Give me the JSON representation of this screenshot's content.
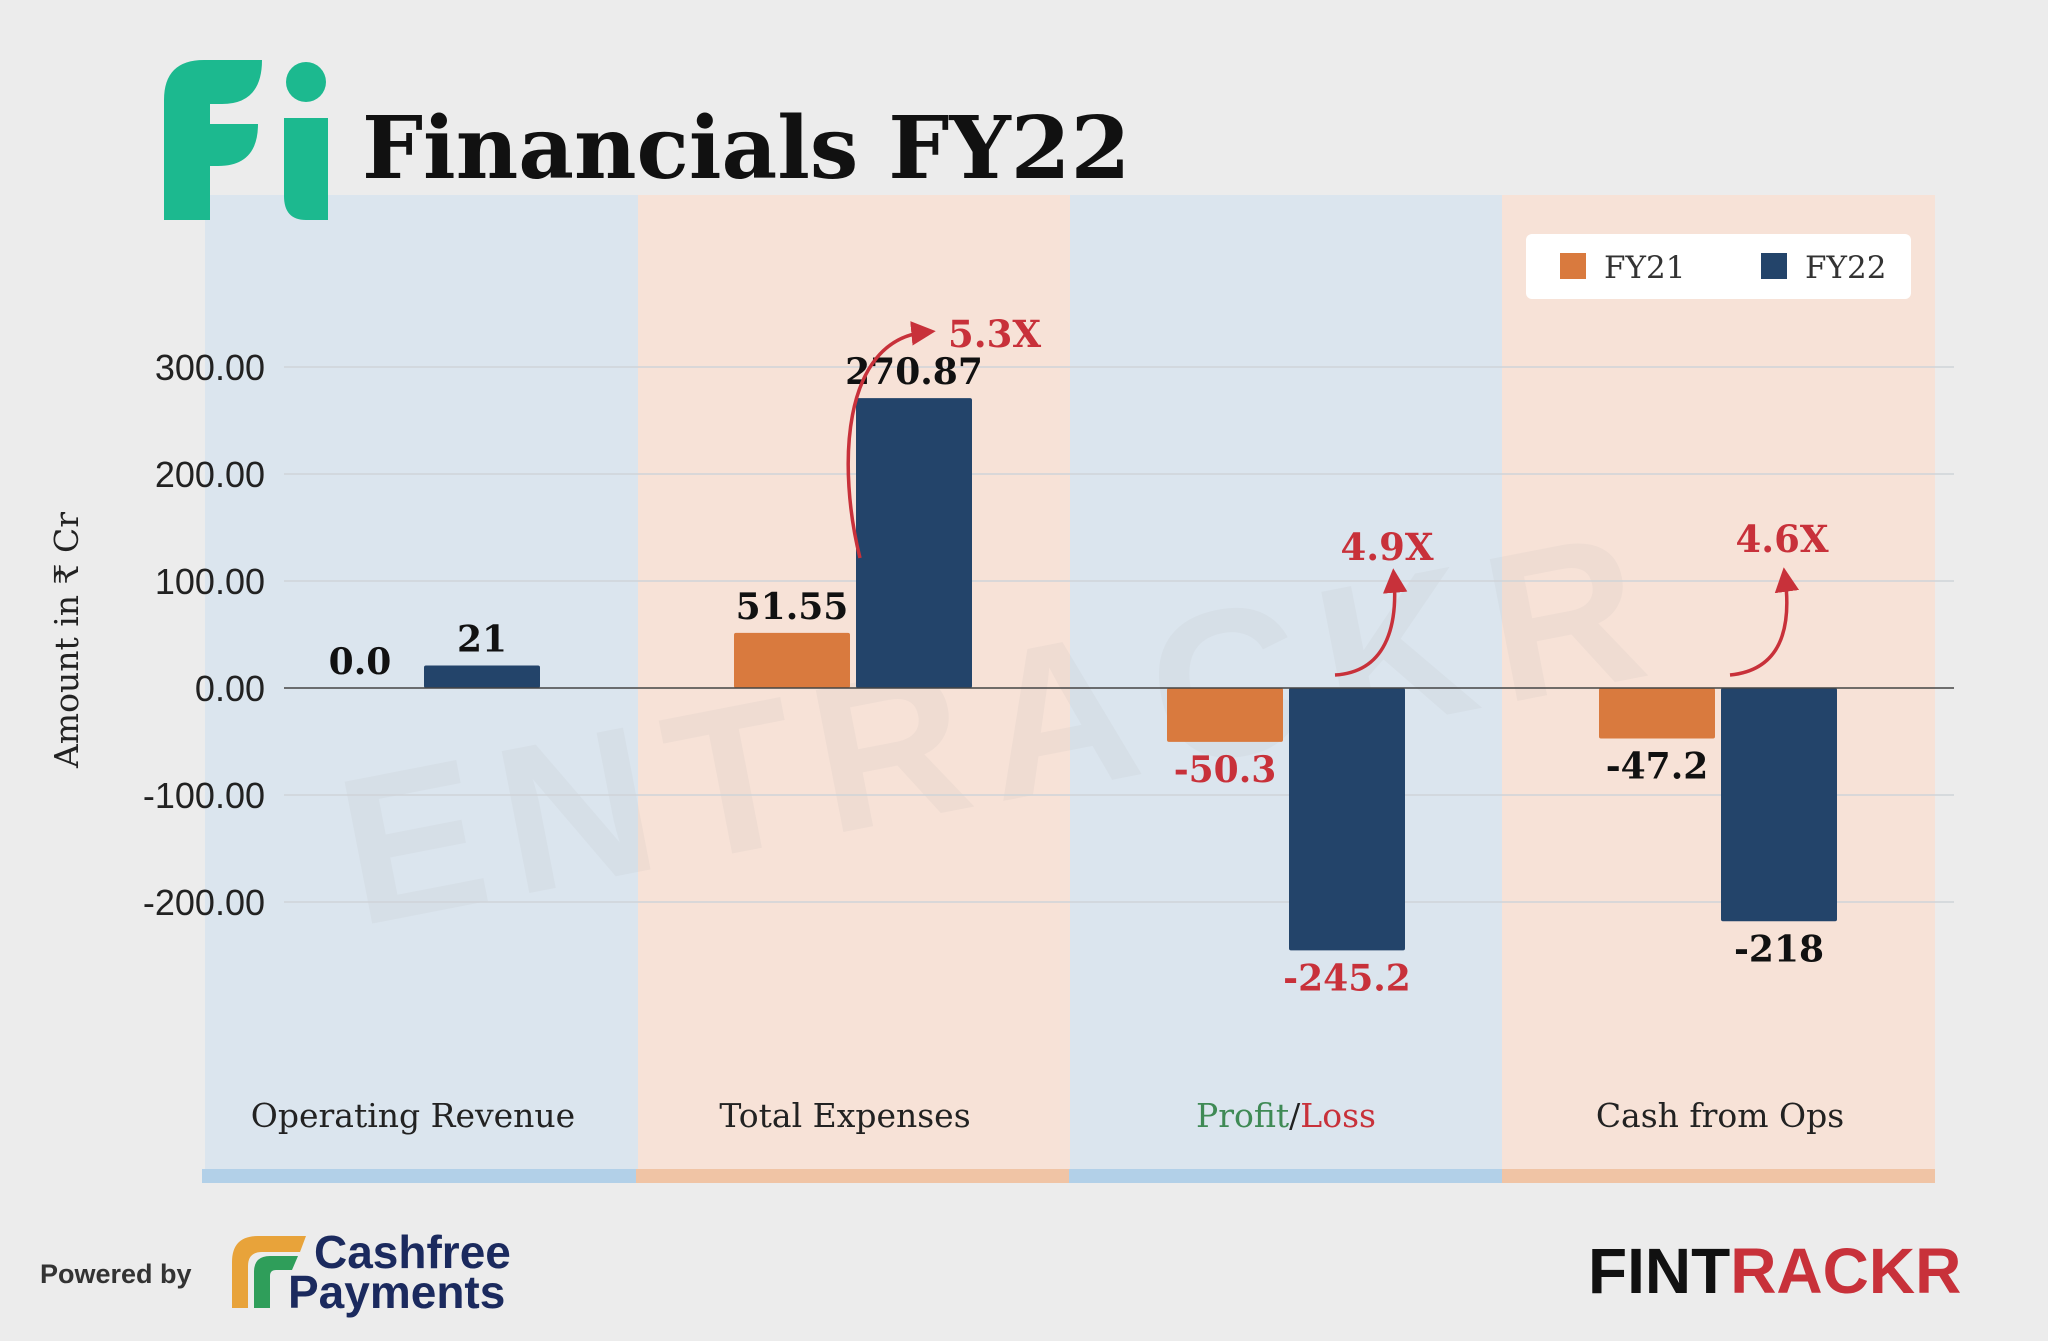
{
  "header": {
    "title": "Financials FY22"
  },
  "footer": {
    "powered_by": "Powered by",
    "sponsor_line1": "Cashfree",
    "sponsor_line2": "Payments",
    "brand_black": "FINT",
    "brand_red": "RACKR"
  },
  "watermark": "ENTRACKR",
  "colors": {
    "fy21": "#d97a3e",
    "fy22": "#23446a",
    "growth": "#c8313a",
    "profit": "#3f8a55",
    "loss": "#c8313a",
    "band_blue": "#dbe5ee",
    "band_peach": "#f7e2d7",
    "strip_blue": "#b2d0e8",
    "strip_peach": "#f0c4a5",
    "logo_green": "#1cb98f"
  },
  "chart_data": {
    "type": "bar",
    "title": "Financials FY22",
    "ylabel": "Amount in ₹ Cr",
    "ylim": [
      -300,
      300
    ],
    "yticks": [
      "300.00",
      "200.00",
      "100.00",
      "0.00",
      "-100.00",
      "-200.00"
    ],
    "yticks_values": [
      300,
      200,
      100,
      0,
      -100,
      -200
    ],
    "legend_position": "top-right",
    "categories": [
      "Operating Revenue",
      "Total Expenses",
      "Profit/Loss",
      "Cash from Ops"
    ],
    "category_parts": {
      "profit": "Profit",
      "slash": "/",
      "loss": "Loss"
    },
    "series": [
      {
        "name": "FY21",
        "values": [
          0.0,
          51.55,
          -50.3,
          -47.2
        ],
        "labels": [
          "0.0",
          "51.55",
          "-50.3",
          "-47.2"
        ]
      },
      {
        "name": "FY22",
        "values": [
          21,
          270.87,
          -245.2,
          -218
        ],
        "labels": [
          "21",
          "270.87",
          "-245.2",
          "-218"
        ]
      }
    ],
    "annotations": [
      {
        "category": "Total Expenses",
        "text": "5.3X"
      },
      {
        "category": "Profit/Loss",
        "text": "4.9X"
      },
      {
        "category": "Cash from Ops",
        "text": "4.6X"
      }
    ]
  }
}
